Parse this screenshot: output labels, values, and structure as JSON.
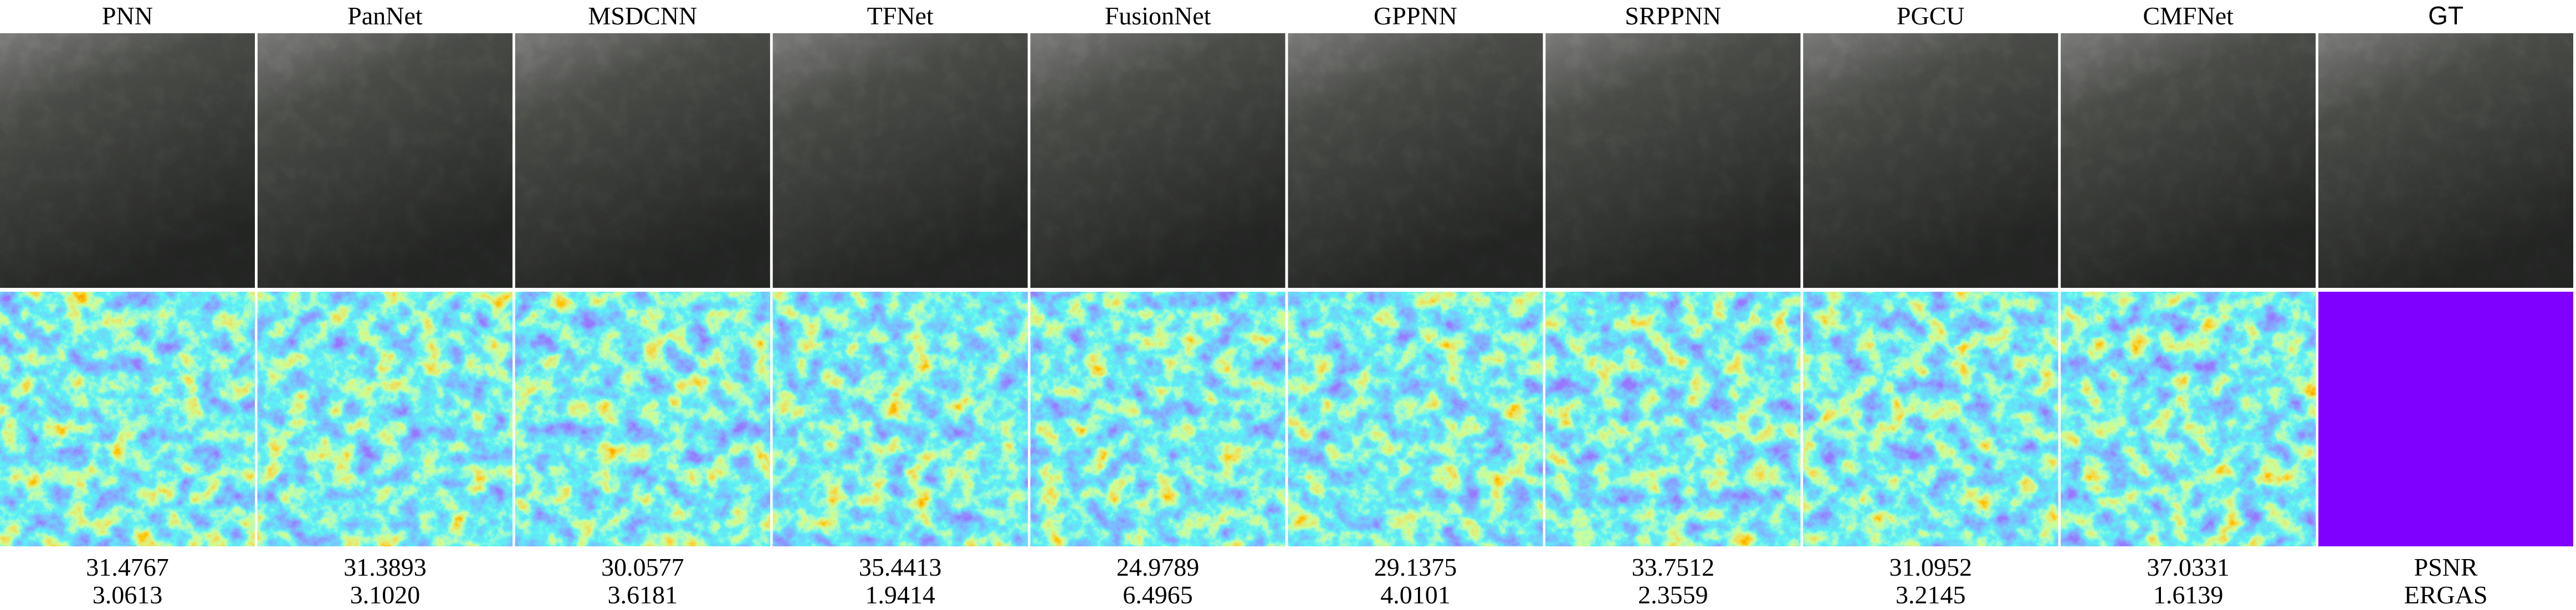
{
  "columns": [
    {
      "name": "PNN",
      "psnr": "31.4767",
      "ergas": "3.0613"
    },
    {
      "name": "PanNet",
      "psnr": "31.3893",
      "ergas": "3.1020"
    },
    {
      "name": "MSDCNN",
      "psnr": "30.0577",
      "ergas": "3.6181"
    },
    {
      "name": "TFNet",
      "psnr": "35.4413",
      "ergas": "1.9414"
    },
    {
      "name": "FusionNet",
      "psnr": "24.9789",
      "ergas": "6.4965"
    },
    {
      "name": "GPPNN",
      "psnr": "29.1375",
      "ergas": "4.0101"
    },
    {
      "name": "SRPPNN",
      "psnr": "33.7512",
      "ergas": "2.3559"
    },
    {
      "name": "PGCU",
      "psnr": "31.0952",
      "ergas": "3.2145"
    },
    {
      "name": "CMFNet",
      "psnr": "37.0331",
      "ergas": "1.6139"
    }
  ],
  "gt": {
    "name": "GT",
    "metrics": [
      "PSNR",
      "ERGAS"
    ]
  }
}
